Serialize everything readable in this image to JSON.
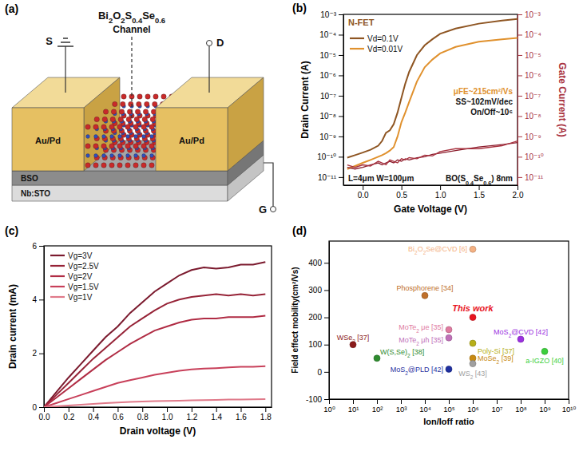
{
  "chart_data": [
    {
      "type": "diagram",
      "title": "(a)",
      "labels": {
        "source": "S",
        "drain": "D",
        "gate": "G",
        "material": "Bi2O2S0.4Se0.6",
        "channel": "Channel",
        "electrodes": [
          "Au/Pd",
          "Au/Pd"
        ],
        "dielectric": "BSO",
        "substrate": "Nb:STO"
      }
    },
    {
      "type": "line",
      "title": "(b)",
      "xlabel": "Gate Voltage (V)",
      "ylabel": "Drain Current (A)",
      "y2label": "Gate Current (A)",
      "log": "y",
      "legend": "upper left",
      "x": [
        -0.2,
        -0.1,
        0,
        0.1,
        0.2,
        0.25,
        0.3,
        0.35,
        0.4,
        0.45,
        0.5,
        0.55,
        0.6,
        0.7,
        0.8,
        0.9,
        1.0,
        1.2,
        1.5,
        1.8,
        2.0
      ],
      "xlim": [
        -0.25,
        2.0
      ],
      "xticks": [
        {
          "value": 0,
          "label": "0.0"
        },
        0.5,
        {
          "value": 1,
          "label": "1.0"
        },
        1.5,
        {
          "value": 2,
          "label": "2.0"
        }
      ],
      "ylim": [
        4e-12,
        0.001
      ],
      "yticks": [
        {
          "value": 1e-11,
          "label": "10⁻¹¹"
        },
        {
          "value": 1e-10,
          "label": "10⁻¹⁰"
        },
        {
          "value": 1e-09,
          "label": "10⁻⁹"
        },
        {
          "value": 1e-08,
          "label": "10⁻⁸"
        },
        {
          "value": 1e-07,
          "label": "10⁻⁷"
        },
        {
          "value": 1e-06,
          "label": "10⁻⁶"
        },
        {
          "value": 1e-05,
          "label": "10⁻⁵"
        },
        {
          "value": 0.0001,
          "label": "10⁻⁴"
        },
        {
          "value": 0.001,
          "label": "10⁻³"
        }
      ],
      "y2lim": [
        4e-12,
        0.001
      ],
      "y2ticks": [
        {
          "value": 1e-11,
          "label": "10⁻¹¹"
        },
        {
          "value": 1e-10,
          "label": "10⁻¹⁰"
        },
        {
          "value": 1e-09,
          "label": "10⁻⁹"
        },
        {
          "value": 1e-08,
          "label": "10⁻⁸"
        },
        {
          "value": 1e-07,
          "label": "10⁻⁷"
        },
        {
          "value": 1e-06,
          "label": "10⁻⁶"
        },
        {
          "value": 1e-05,
          "label": "10⁻⁵"
        },
        {
          "value": 0.0001,
          "label": "10⁻⁴"
        },
        {
          "value": 0.001,
          "label": "10⁻³"
        }
      ],
      "series": [
        {
          "name": "Vd=0.1V",
          "color": "#8e5522",
          "values": [
            9e-11,
            1.2e-10,
            1.6e-10,
            2.2e-10,
            3.5e-10,
            6e-10,
            1.5e-09,
            2e-09,
            4e-09,
            1.5e-08,
            8e-08,
            4e-07,
            1.5e-06,
            1e-05,
            3e-05,
            6e-05,
            0.00011,
            0.0002,
            0.00035,
            0.0005,
            0.0006
          ]
        },
        {
          "name": "Vd=0.01V",
          "color": "#e0912e",
          "values": [
            2.5e-11,
            3.5e-11,
            5e-11,
            7e-11,
            1e-10,
            1.2e-10,
            1.5e-10,
            2e-10,
            3e-10,
            1e-09,
            5e-09,
            1.5e-08,
            5e-08,
            5e-07,
            2.5e-06,
            6e-06,
            1.2e-05,
            2.5e-05,
            4.5e-05,
            6e-05,
            7e-05
          ]
        },
        {
          "color": "#8b1c2c",
          "axis": "y2",
          "values": [
            3e-11,
            2.5e-11,
            3e-11,
            4e-11,
            5e-11,
            4e-11,
            5e-11,
            6e-11,
            5e-11,
            7e-11,
            6e-11,
            8e-11,
            7e-11,
            9e-11,
            1e-10,
            1.3e-10,
            1.5e-10,
            2e-10,
            3e-10,
            4e-10,
            5e-10
          ]
        },
        {
          "color": "#a8323f",
          "axis": "y2",
          "values": [
            4e-11,
            3e-11,
            4e-11,
            3.5e-11,
            6e-11,
            5e-11,
            4e-11,
            7e-11,
            6e-11,
            5e-11,
            8e-11,
            7e-11,
            9e-11,
            8e-11,
            1.2e-10,
            1.1e-10,
            1.8e-10,
            2.5e-10,
            2.5e-10,
            3.5e-10,
            6e-10
          ]
        }
      ],
      "annotations": [
        "N-FET",
        "μFE~215cm²/Vs",
        "SS~102mV/dec",
        "On/Off~10⁶",
        "L=4μm W=100μm",
        "BO(S0.4Se0.6) 8nm"
      ]
    },
    {
      "type": "line",
      "title": "(c)",
      "xlabel": "Drain voltage (V)",
      "ylabel": "Drain current (mA)",
      "legend": "upper left",
      "x": [
        0,
        0.1,
        0.2,
        0.3,
        0.4,
        0.5,
        0.6,
        0.7,
        0.8,
        0.9,
        1.0,
        1.1,
        1.2,
        1.3,
        1.4,
        1.5,
        1.6,
        1.7,
        1.8
      ],
      "xlim": [
        0,
        1.85
      ],
      "xticks": [
        {
          "value": 0,
          "label": "0.0"
        },
        0.2,
        0.4,
        0.6,
        0.8,
        {
          "value": 1,
          "label": "1.0"
        },
        1.2,
        1.4,
        1.6,
        1.8
      ],
      "ylim": [
        0,
        6
      ],
      "yticks": [
        0,
        2,
        4,
        6
      ],
      "series": [
        {
          "name": "Vg=3V",
          "color": "#7b1a2e",
          "values": [
            0,
            0.55,
            1.1,
            1.6,
            2.1,
            2.6,
            3.0,
            3.5,
            3.9,
            4.3,
            4.6,
            4.9,
            5.1,
            5.2,
            5.15,
            5.2,
            5.3,
            5.3,
            5.4
          ]
        },
        {
          "name": "Vg=2.5V",
          "color": "#962337",
          "values": [
            0,
            0.45,
            0.9,
            1.35,
            1.8,
            2.2,
            2.6,
            3.0,
            3.3,
            3.6,
            3.85,
            4.0,
            4.1,
            4.15,
            4.2,
            4.15,
            4.2,
            4.15,
            4.2
          ]
        },
        {
          "name": "Vg=2V",
          "color": "#b02c44",
          "values": [
            0,
            0.35,
            0.7,
            1.05,
            1.4,
            1.75,
            2.05,
            2.35,
            2.6,
            2.85,
            3.0,
            3.15,
            3.25,
            3.3,
            3.3,
            3.35,
            3.35,
            3.35,
            3.4
          ]
        },
        {
          "name": "Vg=1.5V",
          "color": "#c8405a",
          "values": [
            0,
            0.15,
            0.3,
            0.45,
            0.6,
            0.75,
            0.9,
            1.0,
            1.1,
            1.2,
            1.28,
            1.35,
            1.4,
            1.43,
            1.45,
            1.48,
            1.5,
            1.5,
            1.52
          ]
        },
        {
          "name": "Vg=1V",
          "color": "#e07a8a",
          "values": [
            0,
            0.03,
            0.06,
            0.09,
            0.12,
            0.15,
            0.17,
            0.19,
            0.21,
            0.22,
            0.23,
            0.24,
            0.25,
            0.26,
            0.27,
            0.28,
            0.28,
            0.29,
            0.3
          ]
        }
      ]
    },
    {
      "type": "scatter",
      "title": "(d)",
      "xlabel": "Ion/Ioff ratio",
      "ylabel": "Field effect mobility(cm²/Vs)",
      "log": "x",
      "xlim": [
        1,
        10000000000.0
      ],
      "xticks": [
        {
          "value": 1,
          "label": "10⁰"
        },
        {
          "value": 10,
          "label": "10¹"
        },
        {
          "value": 100,
          "label": "10²"
        },
        {
          "value": 1000,
          "label": "10³"
        },
        {
          "value": 10000.0,
          "label": "10⁴"
        },
        {
          "value": 100000.0,
          "label": "10⁵"
        },
        {
          "value": 1000000.0,
          "label": "10⁶"
        },
        {
          "value": 10000000.0,
          "label": "10⁷"
        },
        {
          "value": 100000000.0,
          "label": "10⁸"
        },
        {
          "value": 1000000000.0,
          "label": "10⁹"
        },
        {
          "value": 10000000000.0,
          "label": "10¹⁰"
        }
      ],
      "ylim": [
        -100,
        480
      ],
      "yticks": [
        -100,
        0,
        100,
        200,
        300,
        400
      ],
      "x": [
        1000000.0,
        10000.0,
        1000000.0,
        100000.0,
        100000.0,
        1000000.0,
        100000000.0,
        10,
        100,
        1000000.0,
        1000000000.0,
        100000.0,
        1000000.0
      ],
      "values": [
        450,
        280,
        200,
        155,
        125,
        105,
        120,
        100,
        50,
        50,
        75,
        10,
        30
      ],
      "labels": [
        "Bi2O2Se@CVD [6]",
        "Phosphorene [34]",
        "This work",
        "MoTe2 μe [35]",
        "MoTe2 μh [35]",
        "Poly-Si [37]",
        "MoS2@CVD [42]",
        "WSe2 [37]",
        "W(S,Se)2 [38]",
        "MoSe2 [39]",
        "a-IGZO [40]",
        "MoS2@PLD [42]",
        "WS2 [43]"
      ],
      "colors": [
        "#f4b183",
        "#c0702a",
        "#e8141e",
        "#e07aa0",
        "#c070b8",
        "#b8b018",
        "#9b30e0",
        "#8b1a1a",
        "#2e8b2e",
        "#c88a10",
        "#3ccf3c",
        "#1f2f9f",
        "#a0a0a0"
      ]
    }
  ]
}
